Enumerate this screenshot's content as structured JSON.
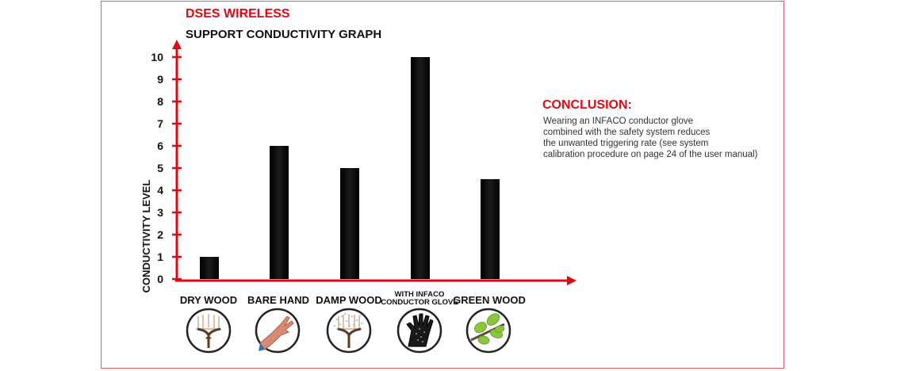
{
  "brand": "DSES WIRELESS",
  "colors": {
    "accent": "#e30613",
    "bar": "#111111",
    "frame": "#e05a5a"
  },
  "conclusion": {
    "title": "CONCLUSION:",
    "lines": [
      "Wearing an INFACO conductor glove",
      "combined with the safety system reduces",
      "the unwanted triggering rate (see system",
      "calibration procedure on page 24 of the user manual)"
    ]
  },
  "chart_data": {
    "type": "bar",
    "title": "SUPPORT CONDUCTIVITY GRAPH",
    "ylabel": "CONDUCTIVITY LEVEL",
    "xlabel": "",
    "ylim": [
      0,
      10
    ],
    "yticks": [
      0,
      1,
      2,
      3,
      4,
      5,
      6,
      7,
      8,
      9,
      10
    ],
    "categories": [
      {
        "label_lines": [
          "DRY WOOD"
        ],
        "icon": "dry-wood-vine-icon"
      },
      {
        "label_lines": [
          "BARE HAND"
        ],
        "icon": "bare-hand-icon"
      },
      {
        "label_lines": [
          "DAMP WOOD"
        ],
        "icon": "damp-wood-vine-icon"
      },
      {
        "label_lines": [
          "WITH INFACO",
          "CONDUCTOR GLOVE"
        ],
        "icon": "conductor-glove-icon"
      },
      {
        "label_lines": [
          "GREEN WOOD"
        ],
        "icon": "green-wood-leaves-icon"
      }
    ],
    "values": [
      1,
      6,
      5,
      10,
      4.5
    ],
    "grid": false,
    "legend": "none"
  }
}
